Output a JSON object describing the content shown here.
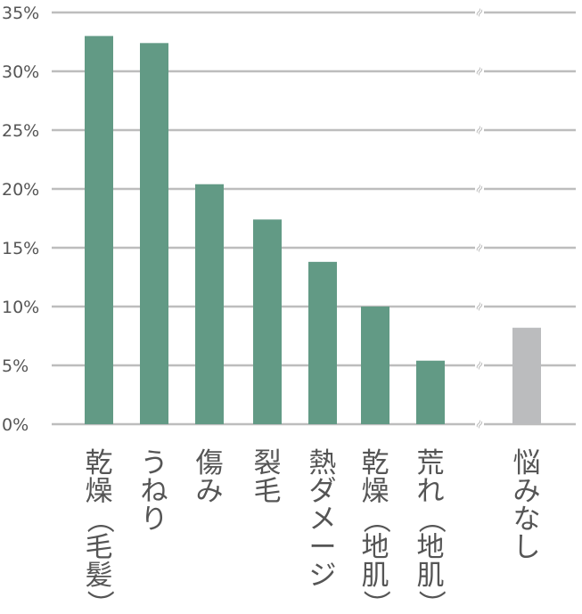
{
  "chart_data": {
    "type": "bar",
    "title": "",
    "xlabel": "",
    "ylabel": "",
    "ylim": [
      0,
      35
    ],
    "yticks": [
      0,
      5,
      10,
      15,
      20,
      25,
      30,
      35
    ],
    "ytick_labels": [
      "0%",
      "5%",
      "10%",
      "15%",
      "20%",
      "25%",
      "30%",
      "35%"
    ],
    "axis_break": true,
    "axis_break_symbol": "≈",
    "grid": true,
    "categories": [
      "乾燥（毛髪）",
      "うねり",
      "傷み",
      "裂毛",
      "熱ダメージ",
      "乾燥（地肌）",
      "荒れ（地肌）",
      "悩みなし"
    ],
    "values": [
      33.0,
      32.4,
      20.4,
      17.4,
      13.8,
      10.0,
      5.4,
      8.2
    ],
    "colors": {
      "main": "#629a85",
      "none": "#bbbcbe",
      "grid": "#bdbdbd",
      "text": "#555555"
    }
  }
}
